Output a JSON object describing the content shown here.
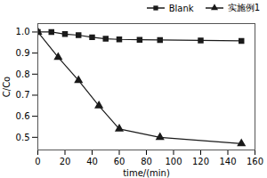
{
  "chart_data": {
    "type": "line",
    "xlabel": "time/(min)",
    "ylabel": "C/Co",
    "series": [
      {
        "name": "Blank",
        "color": "#1a1a1a",
        "marker": "square",
        "line_style": "solid",
        "x": [
          0,
          10,
          20,
          30,
          40,
          50,
          60,
          75,
          90,
          120,
          150
        ],
        "values": [
          1.0,
          1.0,
          0.99,
          0.985,
          0.975,
          0.968,
          0.965,
          0.963,
          0.962,
          0.96,
          0.958
        ]
      },
      {
        "name": "实施例1",
        "color": "#1a1a1a",
        "marker": "triangle",
        "line_style": "solid",
        "x": [
          0,
          15,
          30,
          45,
          60,
          90,
          150
        ],
        "values": [
          1.0,
          0.88,
          0.77,
          0.65,
          0.54,
          0.5,
          0.47
        ]
      }
    ],
    "xlim": [
      0,
      160
    ],
    "ylim": [
      0.44,
      1.04
    ],
    "xticks": [
      0,
      20,
      40,
      60,
      80,
      100,
      120,
      140,
      160
    ],
    "yticks": [
      {
        "value": 0.5,
        "label": "0.5"
      },
      {
        "value": 0.6,
        "label": "0.6"
      },
      {
        "value": 0.7,
        "label": "0.7"
      },
      {
        "value": 0.8,
        "label": "0.8"
      },
      {
        "value": 0.9,
        "label": "0.9"
      },
      {
        "value": 1.0,
        "label": "1.0"
      }
    ],
    "grid": false,
    "legend": "upper right"
  }
}
